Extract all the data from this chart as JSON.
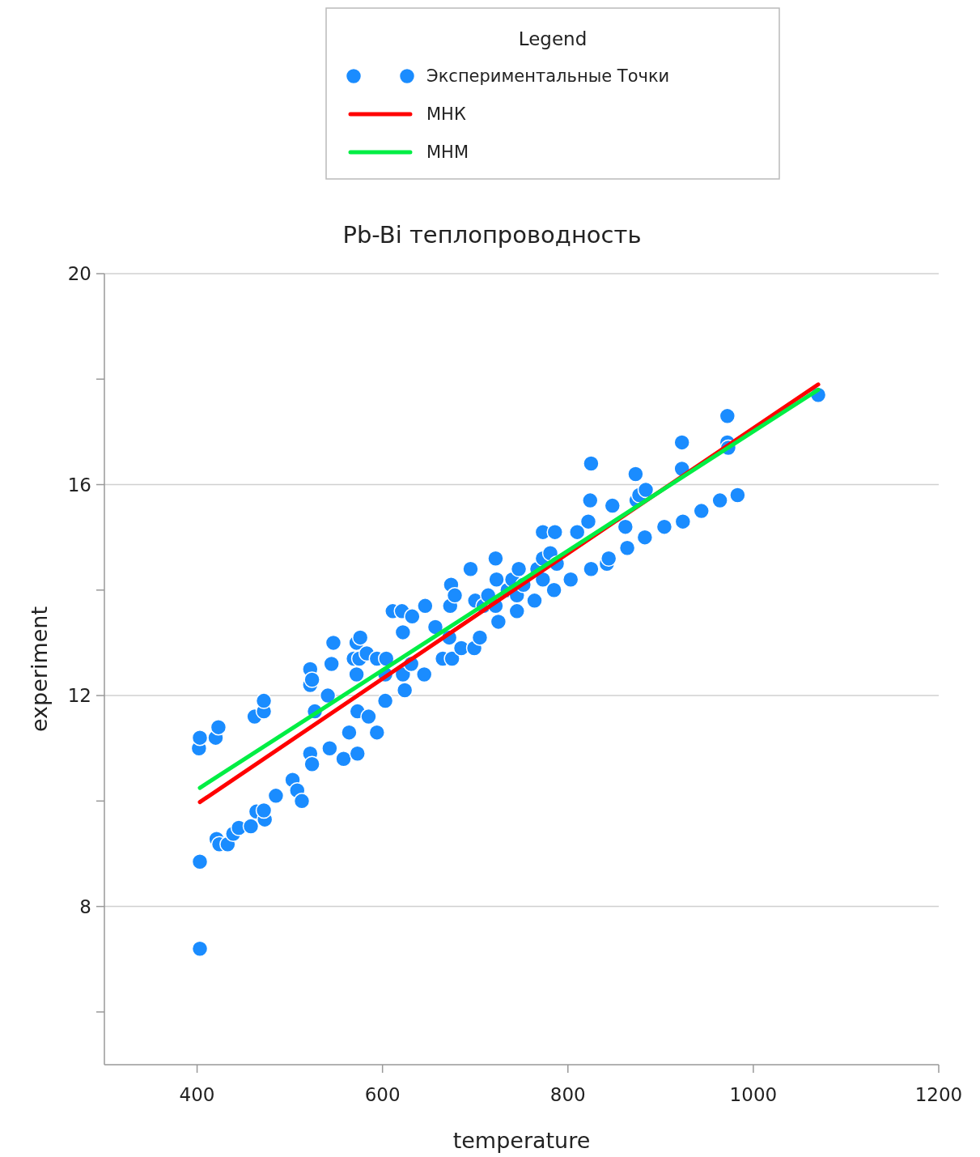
{
  "chart_data": {
    "type": "scatter",
    "title": "Pb-Bi теплопроводность",
    "xlabel": "temperature",
    "ylabel": "experiment",
    "legend_title": "Legend",
    "legend": "top",
    "grid": "y",
    "marker": "circle",
    "xlim": [
      300,
      1200
    ],
    "xticks": [
      400,
      600,
      800,
      1000,
      1200
    ],
    "ylim": [
      5,
      20
    ],
    "yticks": [
      {
        "value": 6,
        "label": null
      },
      8,
      {
        "value": 10,
        "label": null
      },
      12,
      {
        "value": 14,
        "label": null
      },
      16,
      {
        "value": 18,
        "label": null
      },
      20
    ],
    "series": [
      {
        "name": "Экспериментальные Точки",
        "color": "#1a8cff",
        "x": [
          402,
          403,
          403,
          403,
          420,
          423,
          421,
          424,
          433,
          439,
          445,
          458,
          464,
          473,
          472,
          485,
          462,
          472,
          472,
          503,
          508,
          513,
          522,
          522,
          524,
          522,
          524,
          527,
          541,
          543,
          545,
          547,
          558,
          564,
          569,
          572,
          572,
          573,
          573,
          576,
          575,
          583,
          585,
          594,
          594,
          603,
          604,
          603,
          611,
          621,
          622,
          622,
          624,
          631,
          632,
          645,
          646,
          657,
          665,
          672,
          673,
          675,
          674,
          678,
          685,
          695,
          700,
          699,
          705,
          709,
          714,
          722,
          723,
          722,
          725,
          735,
          740,
          745,
          745,
          747,
          752,
          764,
          767,
          773,
          773,
          773,
          781,
          785,
          786,
          788,
          803,
          810,
          822,
          824,
          825,
          825,
          842,
          844,
          848,
          862,
          864,
          873,
          874,
          877,
          883,
          884,
          904,
          923,
          923,
          924,
          944,
          964,
          972,
          972,
          973,
          983,
          1070
        ],
        "values": [
          11.0,
          11.2,
          8.85,
          7.2,
          11.2,
          11.4,
          9.28,
          9.18,
          9.18,
          9.38,
          9.49,
          9.52,
          9.8,
          9.65,
          9.82,
          10.1,
          11.6,
          11.7,
          11.9,
          10.4,
          10.2,
          10.0,
          12.5,
          12.2,
          12.3,
          10.9,
          10.7,
          11.7,
          12.0,
          11.0,
          12.6,
          13.0,
          10.8,
          11.3,
          12.7,
          13.0,
          12.4,
          11.7,
          10.9,
          13.1,
          12.7,
          12.8,
          11.6,
          11.3,
          12.7,
          11.9,
          12.7,
          12.4,
          13.6,
          13.6,
          13.2,
          12.4,
          12.1,
          12.6,
          13.5,
          12.4,
          13.7,
          13.3,
          12.7,
          13.1,
          13.7,
          12.7,
          14.1,
          13.9,
          12.9,
          14.4,
          13.8,
          12.9,
          13.1,
          13.7,
          13.9,
          14.6,
          14.2,
          13.7,
          13.4,
          14.0,
          14.2,
          13.6,
          13.9,
          14.4,
          14.1,
          13.8,
          14.4,
          14.6,
          14.2,
          15.1,
          14.7,
          14.0,
          15.1,
          14.5,
          14.2,
          15.1,
          15.3,
          15.7,
          16.4,
          14.4,
          14.5,
          14.6,
          15.6,
          15.2,
          14.8,
          16.2,
          15.7,
          15.8,
          15.0,
          15.9,
          15.2,
          16.8,
          16.3,
          15.3,
          15.5,
          15.7,
          17.3,
          16.8,
          16.7,
          15.8,
          17.7
        ]
      },
      {
        "name": "МНК",
        "type": "line",
        "marker": "none",
        "color": "#ff0000",
        "x": [
          403,
          1070
        ],
        "values": [
          9.98,
          17.9
        ]
      },
      {
        "name": "МНМ",
        "type": "line",
        "marker": "none",
        "color": "#00ee44",
        "x": [
          403,
          1070
        ],
        "values": [
          10.25,
          17.8
        ]
      }
    ]
  }
}
